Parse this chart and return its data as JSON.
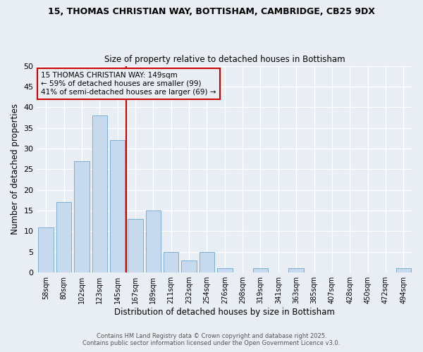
{
  "title": "15, THOMAS CHRISTIAN WAY, BOTTISHAM, CAMBRIDGE, CB25 9DX",
  "subtitle": "Size of property relative to detached houses in Bottisham",
  "xlabel": "Distribution of detached houses by size in Bottisham",
  "ylabel": "Number of detached properties",
  "bar_labels": [
    "58sqm",
    "80sqm",
    "102sqm",
    "123sqm",
    "145sqm",
    "167sqm",
    "189sqm",
    "211sqm",
    "232sqm",
    "254sqm",
    "276sqm",
    "298sqm",
    "319sqm",
    "341sqm",
    "363sqm",
    "385sqm",
    "407sqm",
    "428sqm",
    "450sqm",
    "472sqm",
    "494sqm"
  ],
  "bar_values": [
    11,
    17,
    27,
    38,
    32,
    13,
    15,
    5,
    3,
    5,
    1,
    0,
    1,
    0,
    1,
    0,
    0,
    0,
    0,
    0,
    1
  ],
  "bar_color": "#c6d9ed",
  "bar_edge_color": "#7bafd4",
  "vline_x": 4.5,
  "vline_color": "#cc0000",
  "annotation_title": "15 THOMAS CHRISTIAN WAY: 149sqm",
  "annotation_line1": "← 59% of detached houses are smaller (99)",
  "annotation_line2": "41% of semi-detached houses are larger (69) →",
  "annotation_box_color": "#cc0000",
  "ylim": [
    0,
    50
  ],
  "yticks": [
    0,
    5,
    10,
    15,
    20,
    25,
    30,
    35,
    40,
    45,
    50
  ],
  "footer1": "Contains HM Land Registry data © Crown copyright and database right 2025.",
  "footer2": "Contains public sector information licensed under the Open Government Licence v3.0.",
  "bg_color": "#e8eef4"
}
